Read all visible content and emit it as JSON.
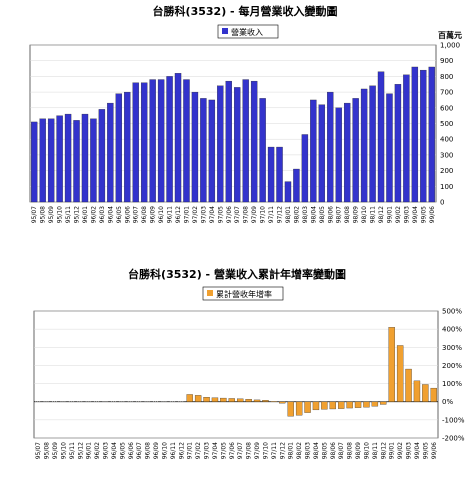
{
  "chart_data": [
    {
      "type": "bar",
      "title": "台勝科(3532) - 每月營業收入變動圖",
      "unit_label": "百萬元",
      "legend": {
        "entries": [
          "營業收入"
        ],
        "placement": "top-right"
      },
      "ylim": [
        0,
        1000
      ],
      "yticks": [
        "0",
        "100",
        "200",
        "300",
        "400",
        "500",
        "600",
        "700",
        "800",
        "900",
        "1,000"
      ],
      "bar_color": "#3333cc",
      "categories": [
        "95/07",
        "95/08",
        "95/09",
        "95/10",
        "95/11",
        "95/12",
        "96/01",
        "96/02",
        "96/03",
        "96/04",
        "96/05",
        "96/06",
        "96/07",
        "96/08",
        "96/09",
        "96/10",
        "96/11",
        "96/12",
        "97/01",
        "97/02",
        "97/03",
        "97/04",
        "97/05",
        "97/06",
        "97/07",
        "97/08",
        "97/09",
        "97/10",
        "97/11",
        "97/12",
        "98/01",
        "98/02",
        "98/03",
        "98/04",
        "98/05",
        "98/06",
        "98/07",
        "98/08",
        "98/09",
        "98/10",
        "98/11",
        "98/12",
        "99/01",
        "99/02",
        "99/03",
        "99/04",
        "99/05",
        "99/06"
      ],
      "values": [
        510,
        530,
        530,
        550,
        560,
        520,
        560,
        530,
        590,
        630,
        690,
        700,
        760,
        760,
        780,
        780,
        800,
        820,
        780,
        700,
        660,
        650,
        740,
        770,
        730,
        780,
        770,
        660,
        350,
        350,
        130,
        210,
        430,
        650,
        620,
        700,
        600,
        630,
        660,
        720,
        740,
        830,
        690,
        750,
        810,
        860,
        840,
        860
      ]
    },
    {
      "type": "bar",
      "title": "台勝科(3532) - 營業收入累計年增率變動圖",
      "legend": {
        "entries": [
          "累計營收年增率"
        ],
        "placement": "top-right"
      },
      "ylim": [
        -200,
        500
      ],
      "yticks": [
        "-200%",
        "-100%",
        "0%",
        "100%",
        "200%",
        "300%",
        "400%",
        "500%"
      ],
      "bar_color": "#f0a030",
      "categories": [
        "95/07",
        "95/08",
        "95/09",
        "95/10",
        "95/11",
        "95/12",
        "96/01",
        "96/02",
        "96/03",
        "96/04",
        "96/05",
        "96/06",
        "96/07",
        "96/08",
        "96/09",
        "96/10",
        "96/11",
        "96/12",
        "97/01",
        "97/02",
        "97/03",
        "97/04",
        "97/05",
        "97/06",
        "97/07",
        "97/08",
        "97/09",
        "97/10",
        "97/11",
        "97/12",
        "98/01",
        "98/02",
        "98/03",
        "98/04",
        "98/05",
        "98/06",
        "98/07",
        "98/08",
        "98/09",
        "98/10",
        "98/11",
        "98/12",
        "99/01",
        "99/02",
        "99/03",
        "99/04",
        "99/05",
        "99/06"
      ],
      "values": [
        0,
        0,
        0,
        0,
        0,
        0,
        0,
        0,
        0,
        0,
        0,
        0,
        0,
        0,
        0,
        0,
        0,
        0,
        40,
        35,
        25,
        22,
        20,
        18,
        16,
        14,
        10,
        8,
        2,
        -8,
        -80,
        -75,
        -60,
        -45,
        -42,
        -40,
        -38,
        -35,
        -33,
        -30,
        -25,
        -15,
        410,
        310,
        180,
        115,
        95,
        75
      ]
    }
  ]
}
